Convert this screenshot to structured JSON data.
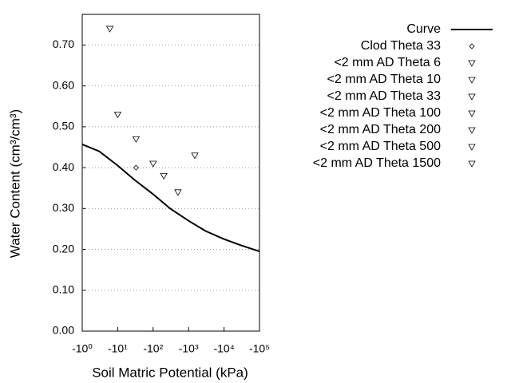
{
  "chart_data": {
    "type": "scatter",
    "xlabel": "Soil Matric Potential (kPa)",
    "ylabel": "Water Content (cm³/cm³)",
    "xscale": "log",
    "xlim": [
      -1,
      -100000
    ],
    "xticks": [
      {
        "value": -1,
        "label": "-10⁰"
      },
      {
        "value": -10,
        "label": "-10¹"
      },
      {
        "value": -100,
        "label": "-10²"
      },
      {
        "value": -1000,
        "label": "-10³"
      },
      {
        "value": -10000,
        "label": "-10⁴"
      },
      {
        "value": -100000,
        "label": "-10⁵"
      }
    ],
    "ylim": [
      0,
      0.775
    ],
    "yticks": [
      {
        "value": 0,
        "label": "0.00"
      },
      {
        "value": 0.1,
        "label": "0.10"
      },
      {
        "value": 0.2,
        "label": "0.20"
      },
      {
        "value": 0.3,
        "label": "0.30"
      },
      {
        "value": 0.4,
        "label": "0.40"
      },
      {
        "value": 0.5,
        "label": "0.50"
      },
      {
        "value": 0.6,
        "label": "0.60"
      },
      {
        "value": 0.7,
        "label": "0.70"
      }
    ],
    "grid": true,
    "legend": "right",
    "series": [
      {
        "name": "Curve",
        "style": "line",
        "color": "#000000",
        "x": [
          -1,
          -3,
          -10,
          -30,
          -100,
          -300,
          -1000,
          -3000,
          -10000,
          -30000,
          -100000
        ],
        "values": [
          0.457,
          0.44,
          0.405,
          0.37,
          0.335,
          0.3,
          0.27,
          0.245,
          0.225,
          0.21,
          0.195
        ]
      },
      {
        "name": "Clod Theta 33",
        "style": "diamond",
        "color": "#000000",
        "x": [
          -33
        ],
        "values": [
          0.4
        ]
      },
      {
        "name": "<2 mm AD Theta 6",
        "style": "triangle",
        "color": "#000000",
        "x": [
          -6
        ],
        "values": [
          0.74
        ]
      },
      {
        "name": "<2 mm AD Theta 10",
        "style": "triangle",
        "color": "#000000",
        "x": [
          -10
        ],
        "values": [
          0.53
        ]
      },
      {
        "name": "<2 mm AD Theta 33",
        "style": "triangle",
        "color": "#000000",
        "x": [
          -33
        ],
        "values": [
          0.47
        ]
      },
      {
        "name": "<2 mm AD Theta 100",
        "style": "triangle",
        "color": "#000000",
        "x": [
          -100
        ],
        "values": [
          0.41
        ]
      },
      {
        "name": "<2 mm AD Theta 200",
        "style": "triangle",
        "color": "#000000",
        "x": [
          -200
        ],
        "values": [
          0.38
        ]
      },
      {
        "name": "<2 mm AD Theta 500",
        "style": "triangle",
        "color": "#000000",
        "x": [
          -500
        ],
        "values": [
          0.34
        ]
      },
      {
        "name": "<2 mm AD Theta 1500",
        "style": "triangle",
        "color": "#000000",
        "x": [
          -1500
        ],
        "values": [
          0.43
        ]
      }
    ]
  }
}
